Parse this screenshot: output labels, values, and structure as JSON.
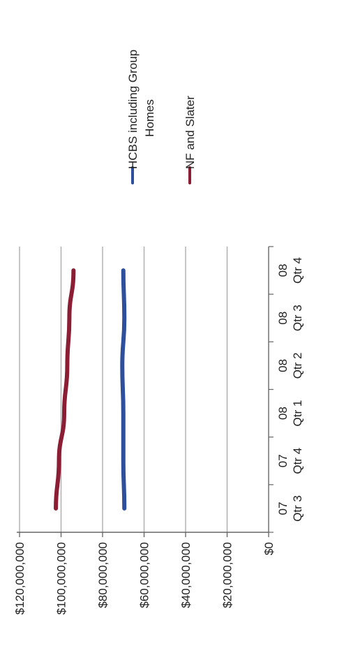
{
  "chart_data": {
    "type": "line",
    "categories": [
      [
        "07",
        "Qtr 3"
      ],
      [
        "07",
        "Qtr 4"
      ],
      [
        "08",
        "Qtr 1"
      ],
      [
        "08",
        "Qtr 2"
      ],
      [
        "08",
        "Qtr 3"
      ],
      [
        "08",
        "Qtr 4"
      ]
    ],
    "ylim": [
      0,
      120000000
    ],
    "y_ticks": [
      {
        "value": 120000000,
        "label": "$120,000,000"
      },
      {
        "value": 100000000,
        "label": "$100,000,000"
      },
      {
        "value": 80000000,
        "label": "$80,000,000"
      },
      {
        "value": 60000000,
        "label": "$60,000,000"
      },
      {
        "value": 40000000,
        "label": "$40,000,000"
      },
      {
        "value": 20000000,
        "label": "$20,000,000"
      },
      {
        "value": 0,
        "label": "$0"
      }
    ],
    "series": [
      {
        "name_lines": [
          "HCBS including Group",
          "Homes"
        ],
        "color": "#2e4f9c",
        "values": [
          69500000,
          70000000,
          70000000,
          70500000,
          69500000,
          70000000
        ]
      },
      {
        "name_lines": [
          "NF and Slater"
        ],
        "color": "#8b1e35",
        "values": [
          102500000,
          101000000,
          98500000,
          97000000,
          96000000,
          94000000
        ]
      }
    ],
    "grid": true,
    "legend_position": "right",
    "orientation": "rotated-90-clockwise"
  }
}
